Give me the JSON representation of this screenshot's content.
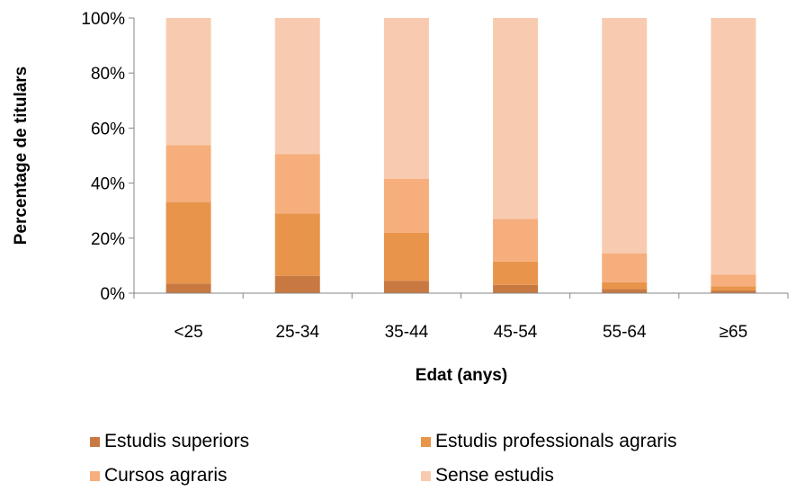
{
  "chart_data": {
    "type": "bar",
    "stacked": true,
    "categories": [
      "<25",
      "25-34",
      "35-44",
      "45-54",
      "55-64",
      "≥65"
    ],
    "series": [
      {
        "name": "Estudis superiors",
        "color": "#c87941",
        "values": [
          3.5,
          6.3,
          4.5,
          3,
          1.5,
          1
        ]
      },
      {
        "name": "Estudis professionals agraris",
        "color": "#e8944a",
        "values": [
          29.5,
          22.7,
          17.5,
          8.5,
          2.5,
          1.5
        ]
      },
      {
        "name": "Cursos agraris",
        "color": "#f5ae7c",
        "values": [
          20.8,
          21.5,
          19.5,
          15.5,
          10.5,
          4.2
        ]
      },
      {
        "name": "Sense estudis",
        "color": "#f8cbb0",
        "values": [
          46.2,
          49.5,
          58.5,
          73,
          85.5,
          93.3
        ]
      }
    ],
    "ylim": [
      0,
      100
    ],
    "yticks": [
      "0%",
      "20%",
      "40%",
      "60%",
      "80%",
      "100%"
    ],
    "ytick_values": [
      0,
      20,
      40,
      60,
      80,
      100
    ],
    "ylabel": "Percentage de titulars",
    "xlabel": "Edat (anys)",
    "legend_position": "bottom",
    "grid": false
  }
}
